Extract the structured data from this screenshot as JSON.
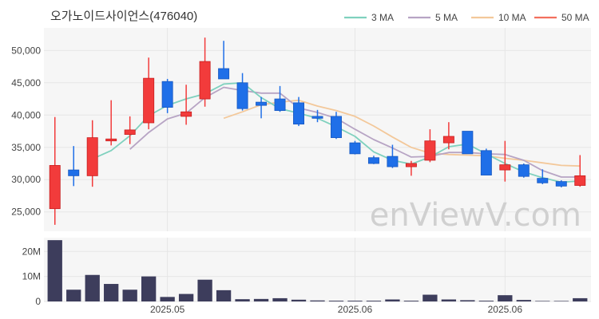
{
  "chart_data": {
    "type": "candlestick",
    "title": "오가노이드사이언스(476040)",
    "watermark": "enViewV.com",
    "price_axis": {
      "ylim": [
        22000,
        53500
      ],
      "ticks": [
        25000,
        30000,
        35000,
        40000,
        45000,
        50000
      ],
      "tick_labels": [
        "25,000",
        "30,000",
        "35,000",
        "40,000",
        "45,000",
        "50,000"
      ]
    },
    "volume_axis": {
      "ylim": [
        0,
        25500000
      ],
      "ticks": [
        0,
        10000000,
        20000000
      ],
      "tick_labels": [
        "0",
        "10M",
        "20M"
      ]
    },
    "x_tick_labels": [
      {
        "index": 6,
        "label": "2025.05"
      },
      {
        "index": 16,
        "label": "2025.06"
      },
      {
        "index": 24,
        "label": "2025.06"
      }
    ],
    "legend": [
      {
        "name": "3 MA",
        "color": "#7fd1be"
      },
      {
        "name": "5 MA",
        "color": "#b7a4c4"
      },
      {
        "name": "10 MA",
        "color": "#f3c89a"
      },
      {
        "name": "50 MA",
        "color": "#f36f5e"
      }
    ],
    "colors": {
      "up": "#f23b3b",
      "down": "#1f6fe8",
      "volume": "#3d3d5c",
      "grid": "#e6e6e6",
      "plot_bg": "#f6f6f6"
    },
    "candles": [
      {
        "open": 25500,
        "high": 39700,
        "low": 23000,
        "close": 32200
      },
      {
        "open": 31500,
        "high": 35200,
        "low": 29000,
        "close": 30600
      },
      {
        "open": 30600,
        "high": 39200,
        "low": 28900,
        "close": 36500
      },
      {
        "open": 36000,
        "high": 42300,
        "low": 35300,
        "close": 36300
      },
      {
        "open": 37000,
        "high": 39800,
        "low": 35500,
        "close": 37700
      },
      {
        "open": 38800,
        "high": 48900,
        "low": 37800,
        "close": 45700
      },
      {
        "open": 45200,
        "high": 45600,
        "low": 40300,
        "close": 41200
      },
      {
        "open": 39800,
        "high": 44700,
        "low": 38500,
        "close": 40500
      },
      {
        "open": 42500,
        "high": 52000,
        "low": 41300,
        "close": 48300
      },
      {
        "open": 47200,
        "high": 51500,
        "low": 45700,
        "close": 45600
      },
      {
        "open": 45000,
        "high": 46500,
        "low": 40700,
        "close": 41000
      },
      {
        "open": 42000,
        "high": 42800,
        "low": 39500,
        "close": 41500
      },
      {
        "open": 42500,
        "high": 44500,
        "low": 40500,
        "close": 40700
      },
      {
        "open": 41900,
        "high": 42800,
        "low": 38300,
        "close": 38600
      },
      {
        "open": 39800,
        "high": 40800,
        "low": 38900,
        "close": 39500
      },
      {
        "open": 39800,
        "high": 40500,
        "low": 36300,
        "close": 36500
      },
      {
        "open": 35700,
        "high": 36000,
        "low": 33900,
        "close": 34000
      },
      {
        "open": 33400,
        "high": 33700,
        "low": 32400,
        "close": 32500
      },
      {
        "open": 33600,
        "high": 35400,
        "low": 31800,
        "close": 32000
      },
      {
        "open": 32000,
        "high": 32900,
        "low": 30600,
        "close": 32500
      },
      {
        "open": 33000,
        "high": 37800,
        "low": 32700,
        "close": 36000
      },
      {
        "open": 35700,
        "high": 38900,
        "low": 34700,
        "close": 36700
      },
      {
        "open": 37500,
        "high": 37500,
        "low": 34000,
        "close": 34000
      },
      {
        "open": 34500,
        "high": 34800,
        "low": 30700,
        "close": 30700
      },
      {
        "open": 31500,
        "high": 36000,
        "low": 29700,
        "close": 32300
      },
      {
        "open": 32300,
        "high": 32500,
        "low": 30300,
        "close": 30500
      },
      {
        "open": 30200,
        "high": 31600,
        "low": 29300,
        "close": 29500
      },
      {
        "open": 29700,
        "high": 29900,
        "low": 28800,
        "close": 29000
      },
      {
        "open": 29100,
        "high": 33800,
        "low": 28900,
        "close": 30600
      }
    ],
    "volume": [
      24500000,
      4700000,
      10600000,
      7000000,
      4700000,
      10000000,
      1800000,
      3000000,
      8700000,
      4500000,
      900000,
      1000000,
      1300000,
      700000,
      400000,
      300000,
      300000,
      300000,
      800000,
      300000,
      2700000,
      800000,
      500000,
      300000,
      2500000,
      600000,
      200000,
      200000,
      1300000
    ],
    "ma_3": [
      null,
      null,
      33200,
      34500,
      36800,
      39900,
      41500,
      42500,
      43300,
      44800,
      45000,
      42700,
      41000,
      40300,
      39500,
      38200,
      36700,
      34300,
      33000,
      32400,
      33500,
      35100,
      35500,
      34000,
      32500,
      31200,
      30300,
      29600,
      29800
    ],
    "ma_5": [
      null,
      null,
      null,
      null,
      34700,
      37300,
      39400,
      40300,
      42700,
      44300,
      43800,
      43400,
      43400,
      41100,
      40400,
      39500,
      37800,
      36200,
      34900,
      33500,
      33600,
      34200,
      34200,
      34000,
      33900,
      33000,
      31400,
      30400,
      30400
    ],
    "ma_10": [
      null,
      null,
      null,
      null,
      null,
      null,
      null,
      null,
      null,
      39500,
      40500,
      41600,
      42000,
      42300,
      41400,
      40700,
      39800,
      38300,
      36600,
      35000,
      34100,
      33900,
      33800,
      33700,
      33300,
      33000,
      32600,
      32200,
      32100
    ],
    "ma_50": []
  }
}
